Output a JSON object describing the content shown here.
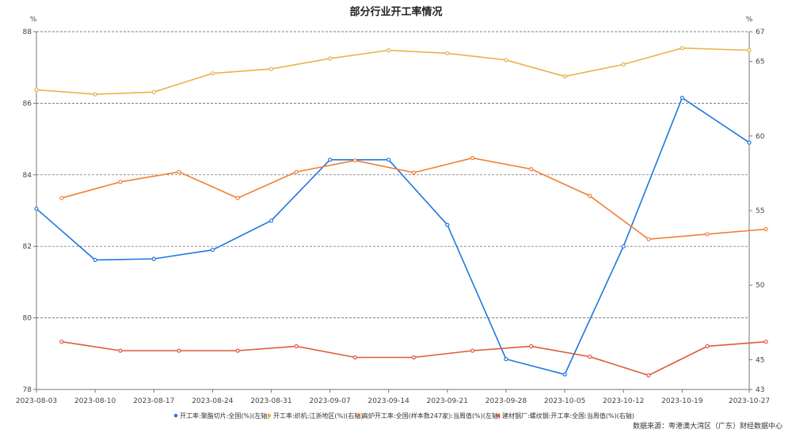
{
  "chart_data": {
    "type": "line",
    "title": "部分行业开工率情况",
    "left_unit": "%",
    "right_unit": "%",
    "source": "数据来源：粤港澳大湾区（广东）财经数据中心",
    "left_axis": {
      "min": 78,
      "max": 88,
      "ticks": [
        "78",
        "80",
        "82",
        "84",
        "86",
        "88"
      ]
    },
    "right_axis": {
      "min": 43,
      "max": 67,
      "ticks": [
        "43",
        "45",
        "50",
        "55",
        "60",
        "65",
        "67"
      ]
    },
    "x_range": [
      "2023-08-03",
      "2023-10-27"
    ],
    "x_ticks": [
      "2023-08-03",
      "2023-08-10",
      "2023-08-17",
      "2023-08-24",
      "2023-08-31",
      "2023-09-07",
      "2023-09-14",
      "2023-09-21",
      "2023-09-28",
      "2023-10-05",
      "2023-10-12",
      "2023-10-19",
      "2023-10-27"
    ],
    "grid": "horizontal dashed",
    "legend_position": "bottom",
    "series": [
      {
        "name": "开工率:聚酯切片:全国(%)(左轴)",
        "axis": "left",
        "color": "#1f77e0",
        "points": [
          [
            "2023-08-03",
            83.05
          ],
          [
            "2023-08-10",
            81.62
          ],
          [
            "2023-08-17",
            81.65
          ],
          [
            "2023-08-24",
            81.9
          ],
          [
            "2023-08-31",
            82.72
          ],
          [
            "2023-09-07",
            84.42
          ],
          [
            "2023-09-14",
            84.42
          ],
          [
            "2023-09-21",
            82.6
          ],
          [
            "2023-09-28",
            78.85
          ],
          [
            "2023-10-05",
            78.42
          ],
          [
            "2023-10-12",
            82.0
          ],
          [
            "2023-10-19",
            86.15
          ],
          [
            "2023-10-27",
            84.9
          ]
        ]
      },
      {
        "name": "开工率:织机:江浙地区(%)(右轴)",
        "axis": "right",
        "color": "#e8b34a",
        "points": [
          [
            "2023-08-03",
            63.1
          ],
          [
            "2023-08-10",
            62.8
          ],
          [
            "2023-08-17",
            62.95
          ],
          [
            "2023-08-24",
            64.2
          ],
          [
            "2023-08-31",
            64.5
          ],
          [
            "2023-09-07",
            65.2
          ],
          [
            "2023-09-14",
            65.75
          ],
          [
            "2023-09-21",
            65.55
          ],
          [
            "2023-09-28",
            65.1
          ],
          [
            "2023-10-05",
            64.0
          ],
          [
            "2023-10-12",
            64.8
          ],
          [
            "2023-10-19",
            65.9
          ],
          [
            "2023-10-27",
            65.75
          ]
        ]
      },
      {
        "name": "高炉开工率:全国(样本数247家):当周值(%)(左轴)",
        "axis": "left",
        "color": "#f07f35",
        "points": [
          [
            "2023-08-06",
            83.35
          ],
          [
            "2023-08-13",
            83.8
          ],
          [
            "2023-08-20",
            84.08
          ],
          [
            "2023-08-27",
            83.35
          ],
          [
            "2023-09-03",
            84.08
          ],
          [
            "2023-09-10",
            84.4
          ],
          [
            "2023-09-17",
            84.06
          ],
          [
            "2023-09-24",
            84.47
          ],
          [
            "2023-10-01",
            84.16
          ],
          [
            "2023-10-08",
            83.41
          ],
          [
            "2023-10-15",
            82.2
          ],
          [
            "2023-10-22",
            82.34
          ],
          [
            "2023-10-29",
            82.48
          ]
        ]
      },
      {
        "name": "建材钢厂:螺纹钢:开工率:全国:当周值(%)(右轴)",
        "axis": "right",
        "color": "#e05a3a",
        "points": [
          [
            "2023-08-06",
            46.2
          ],
          [
            "2023-08-13",
            45.6
          ],
          [
            "2023-08-20",
            45.6
          ],
          [
            "2023-08-27",
            45.6
          ],
          [
            "2023-09-03",
            45.9
          ],
          [
            "2023-09-10",
            45.15
          ],
          [
            "2023-09-17",
            45.15
          ],
          [
            "2023-09-24",
            45.6
          ],
          [
            "2023-10-01",
            45.9
          ],
          [
            "2023-10-08",
            45.2
          ],
          [
            "2023-10-15",
            43.95
          ],
          [
            "2023-10-22",
            45.9
          ],
          [
            "2023-10-29",
            46.2
          ]
        ]
      }
    ]
  }
}
